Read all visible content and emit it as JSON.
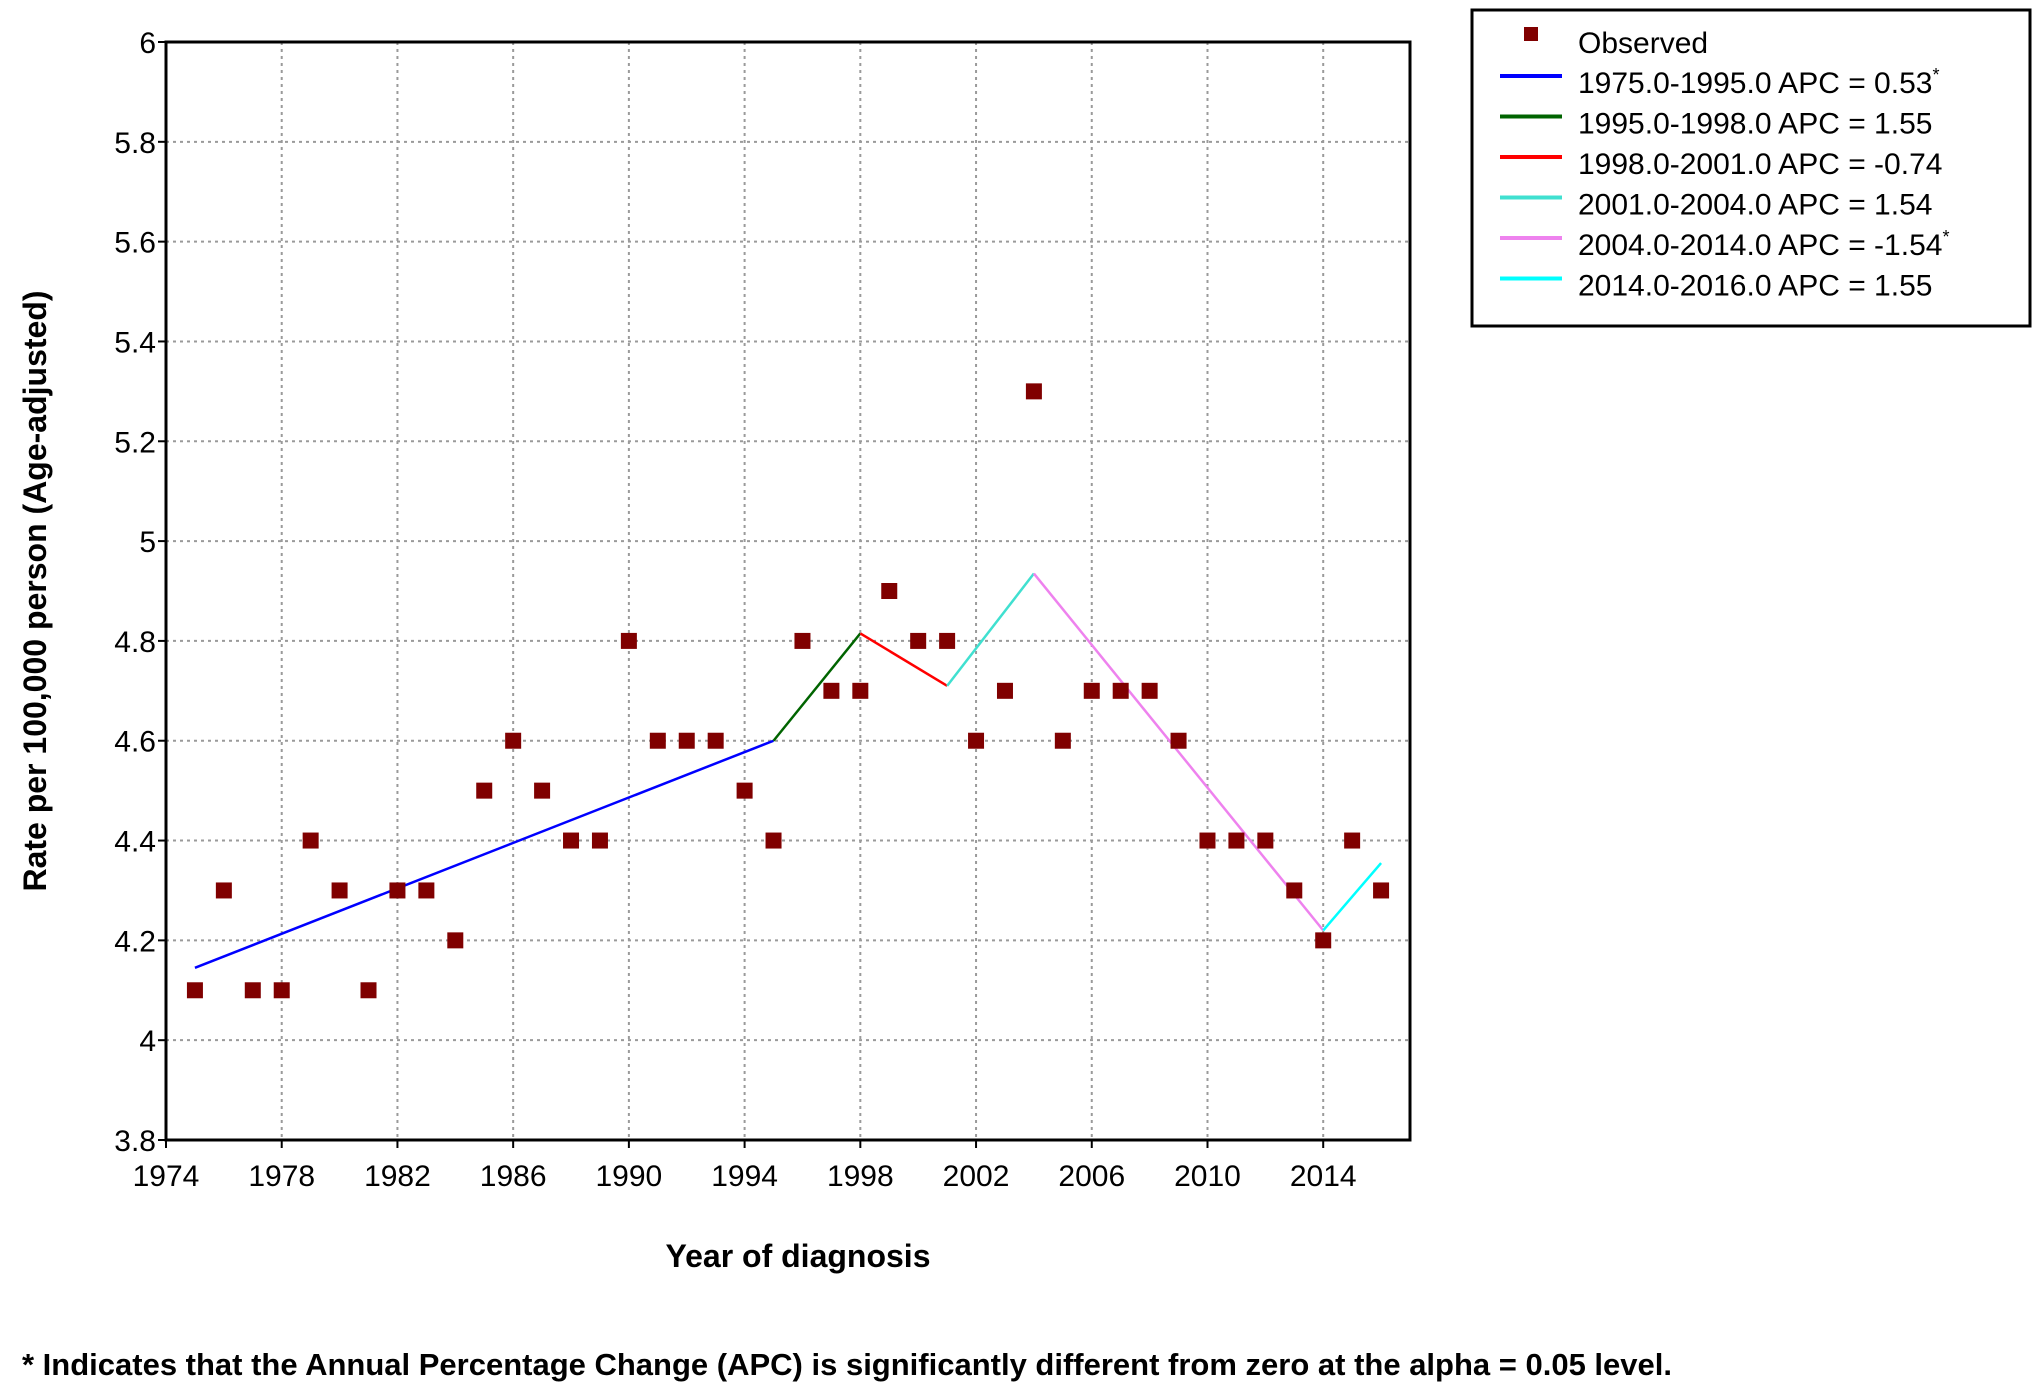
{
  "chart_data": {
    "type": "scatter",
    "xlabel": "Year of diagnosis",
    "ylabel": "Rate per 100,000 person (Age-adjusted)",
    "xlim": [
      1974,
      2017
    ],
    "ylim": [
      3.8,
      6
    ],
    "xticks": [
      1974,
      1978,
      1982,
      1986,
      1990,
      1994,
      1998,
      2002,
      2006,
      2010,
      2014
    ],
    "xtick_labels": [
      "1974",
      "1978",
      "1982",
      "1986",
      "1990",
      "1994",
      "1998",
      "2002",
      "2006",
      "2010",
      "2014"
    ],
    "yticks": [
      3.8,
      4,
      4.2,
      4.4,
      4.6,
      4.8,
      5,
      5.2,
      5.4,
      5.6,
      5.8,
      6
    ],
    "ytick_labels": [
      "3.8",
      "4",
      "4.2",
      "4.4",
      "4.6",
      "4.8",
      "5",
      "5.2",
      "5.4",
      "5.6",
      "5.8",
      "6"
    ],
    "grid": true,
    "legend_position": "outside-top-right",
    "observed": {
      "name": "Observed",
      "color": "#800000",
      "x": [
        1975,
        1976,
        1977,
        1978,
        1979,
        1980,
        1981,
        1982,
        1983,
        1984,
        1985,
        1986,
        1987,
        1988,
        1989,
        1990,
        1991,
        1992,
        1993,
        1994,
        1995,
        1996,
        1997,
        1998,
        1999,
        2000,
        2001,
        2002,
        2003,
        2004,
        2005,
        2006,
        2007,
        2008,
        2009,
        2010,
        2011,
        2012,
        2013,
        2014,
        2015,
        2016
      ],
      "y": [
        4.1,
        4.3,
        4.1,
        4.1,
        4.4,
        4.3,
        4.1,
        4.3,
        4.3,
        4.2,
        4.5,
        4.6,
        4.5,
        4.4,
        4.4,
        4.8,
        4.6,
        4.6,
        4.6,
        4.5,
        4.4,
        4.8,
        4.7,
        4.7,
        4.9,
        4.8,
        4.8,
        4.6,
        4.7,
        5.3,
        4.6,
        4.7,
        4.7,
        4.7,
        4.6,
        4.4,
        4.4,
        4.4,
        4.3,
        4.2,
        4.4,
        4.3
      ]
    },
    "segments": [
      {
        "label": "1975.0-1995.0 APC  =  0.53",
        "star": "*",
        "color": "#0000ff",
        "x": [
          1975,
          1995
        ],
        "y": [
          4.145,
          4.6
        ]
      },
      {
        "label": "1995.0-1998.0 APC  =  1.55",
        "star": "",
        "color": "#006400",
        "x": [
          1995,
          1998
        ],
        "y": [
          4.6,
          4.815
        ]
      },
      {
        "label": "1998.0-2001.0 APC  = -0.74",
        "star": "",
        "color": "#ff0000",
        "x": [
          1998,
          2001
        ],
        "y": [
          4.815,
          4.71
        ]
      },
      {
        "label": "2001.0-2004.0 APC  =  1.54",
        "star": "",
        "color": "#40e0d0",
        "x": [
          2001,
          2004
        ],
        "y": [
          4.71,
          4.935
        ]
      },
      {
        "label": "2004.0-2014.0 APC  = -1.54",
        "star": "*",
        "color": "#ee82ee",
        "x": [
          2004,
          2014
        ],
        "y": [
          4.935,
          4.22
        ]
      },
      {
        "label": "2014.0-2016.0 APC  =  1.55",
        "star": "",
        "color": "#00ffff",
        "x": [
          2014,
          2016
        ],
        "y": [
          4.22,
          4.355
        ]
      }
    ],
    "footnote": "* Indicates that the Annual Percentage Change (APC) is significantly different from zero at the alpha = 0.05 level."
  }
}
